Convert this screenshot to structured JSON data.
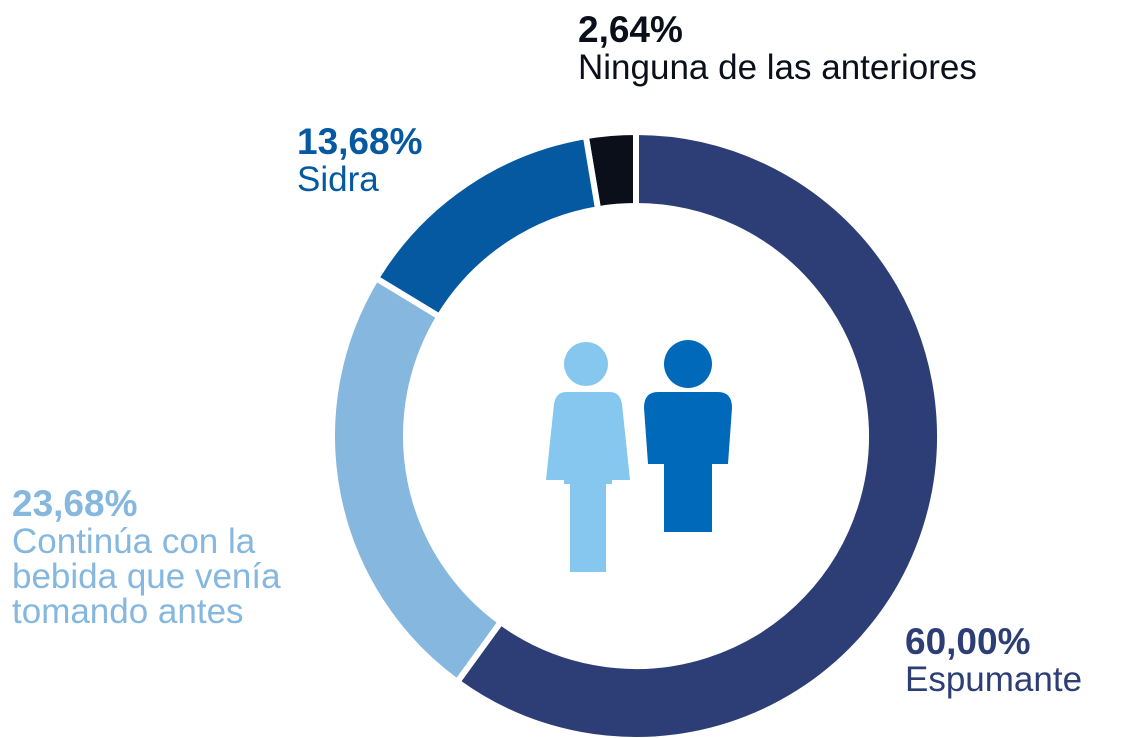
{
  "chart_data": {
    "type": "donut",
    "categories": [
      "Espumante",
      "Continúa con la bebida que venía tomando antes",
      "Sidra",
      "Ninguna de las anteriores"
    ],
    "values": [
      60.0,
      23.68,
      13.68,
      2.64
    ],
    "value_labels": [
      "60,00%",
      "23,68%",
      "13,68%",
      "2,64%"
    ],
    "colors": [
      "#2c3e75",
      "#85b7df",
      "#0459a0",
      "#0a0f1a"
    ]
  }
}
